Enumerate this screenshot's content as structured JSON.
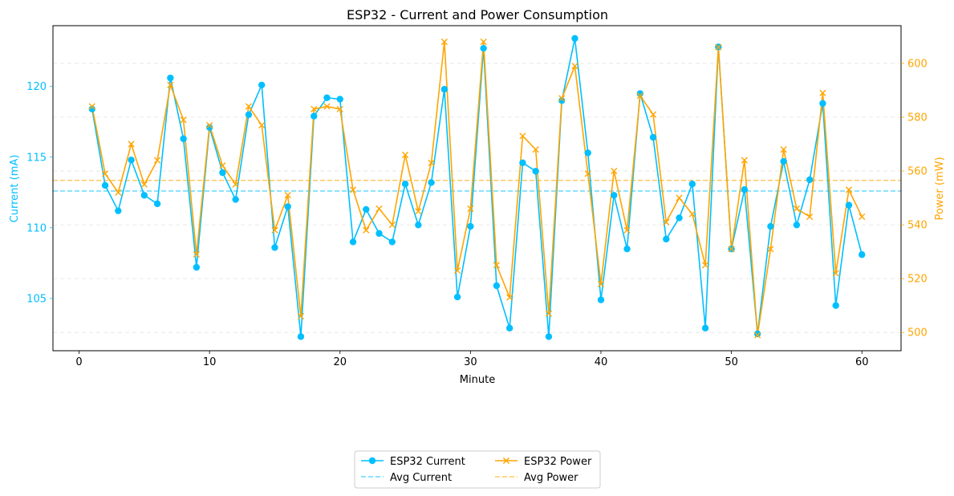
{
  "chart_data": {
    "type": "line",
    "title": "ESP32 - Current and Power Consumption",
    "xlabel": "Minute",
    "ylabel_left": "Current (mA)",
    "ylabel_right": "Power (mW)",
    "xlim": [
      -2,
      63
    ],
    "ylim_left": [
      101.3,
      124.3
    ],
    "ylim_right": [
      493.2,
      614.0
    ],
    "xticks": [
      0,
      10,
      20,
      30,
      40,
      50,
      60
    ],
    "yticks_left": [
      105,
      110,
      115,
      120
    ],
    "yticks_right": [
      500,
      520,
      540,
      560,
      580,
      600
    ],
    "grid": true,
    "legend_position": "bottom-center",
    "colors": {
      "current": "#00bfff",
      "power": "#ffa500",
      "current_label": "#00bfff",
      "power_label": "#ffa500"
    },
    "x": [
      1,
      2,
      3,
      4,
      5,
      6,
      7,
      8,
      9,
      10,
      11,
      12,
      13,
      14,
      15,
      16,
      17,
      18,
      19,
      20,
      21,
      22,
      23,
      24,
      25,
      26,
      27,
      28,
      29,
      30,
      31,
      32,
      33,
      34,
      35,
      36,
      37,
      38,
      39,
      40,
      41,
      42,
      43,
      44,
      45,
      46,
      47,
      48,
      49,
      50,
      51,
      52,
      53,
      54,
      55,
      56,
      57,
      58,
      59,
      60
    ],
    "series": [
      {
        "name": "ESP32 Current",
        "axis": "left",
        "style": "line-circle",
        "values": [
          118.4,
          113.0,
          111.2,
          114.8,
          112.3,
          111.7,
          120.6,
          116.3,
          107.2,
          117.1,
          113.9,
          112.0,
          118.0,
          120.1,
          108.6,
          111.5,
          102.3,
          117.9,
          119.2,
          119.1,
          109.0,
          111.3,
          109.6,
          109.0,
          113.1,
          110.2,
          113.2,
          119.8,
          105.1,
          110.1,
          122.7,
          105.9,
          102.9,
          114.6,
          114.0,
          102.3,
          119.0,
          123.4,
          115.3,
          104.9,
          112.3,
          108.5,
          119.5,
          116.4,
          109.2,
          110.7,
          113.1,
          102.9,
          122.8,
          108.5,
          112.7,
          102.5,
          110.1,
          114.7,
          110.2,
          113.4,
          118.8,
          104.5,
          111.6,
          108.1
        ]
      },
      {
        "name": "ESP32 Power",
        "axis": "right",
        "style": "line-x",
        "values": [
          584,
          559,
          552,
          570,
          555,
          564,
          592,
          579,
          529,
          577,
          562,
          555,
          584,
          577,
          538,
          551,
          506,
          583,
          584,
          583,
          553,
          538,
          546,
          540,
          566,
          545,
          563,
          608,
          523,
          546,
          608,
          525,
          513,
          573,
          568,
          507,
          587,
          599,
          559,
          518,
          560,
          538,
          588,
          581,
          541,
          550,
          544,
          525,
          606,
          531,
          564,
          499,
          531,
          568,
          546,
          543,
          589,
          522,
          553,
          543
        ]
      },
      {
        "name": "Avg Current",
        "axis": "left",
        "style": "dashed",
        "value": 112.6
      },
      {
        "name": "Avg Power",
        "axis": "right",
        "style": "dashed",
        "value": 556.5
      }
    ]
  }
}
